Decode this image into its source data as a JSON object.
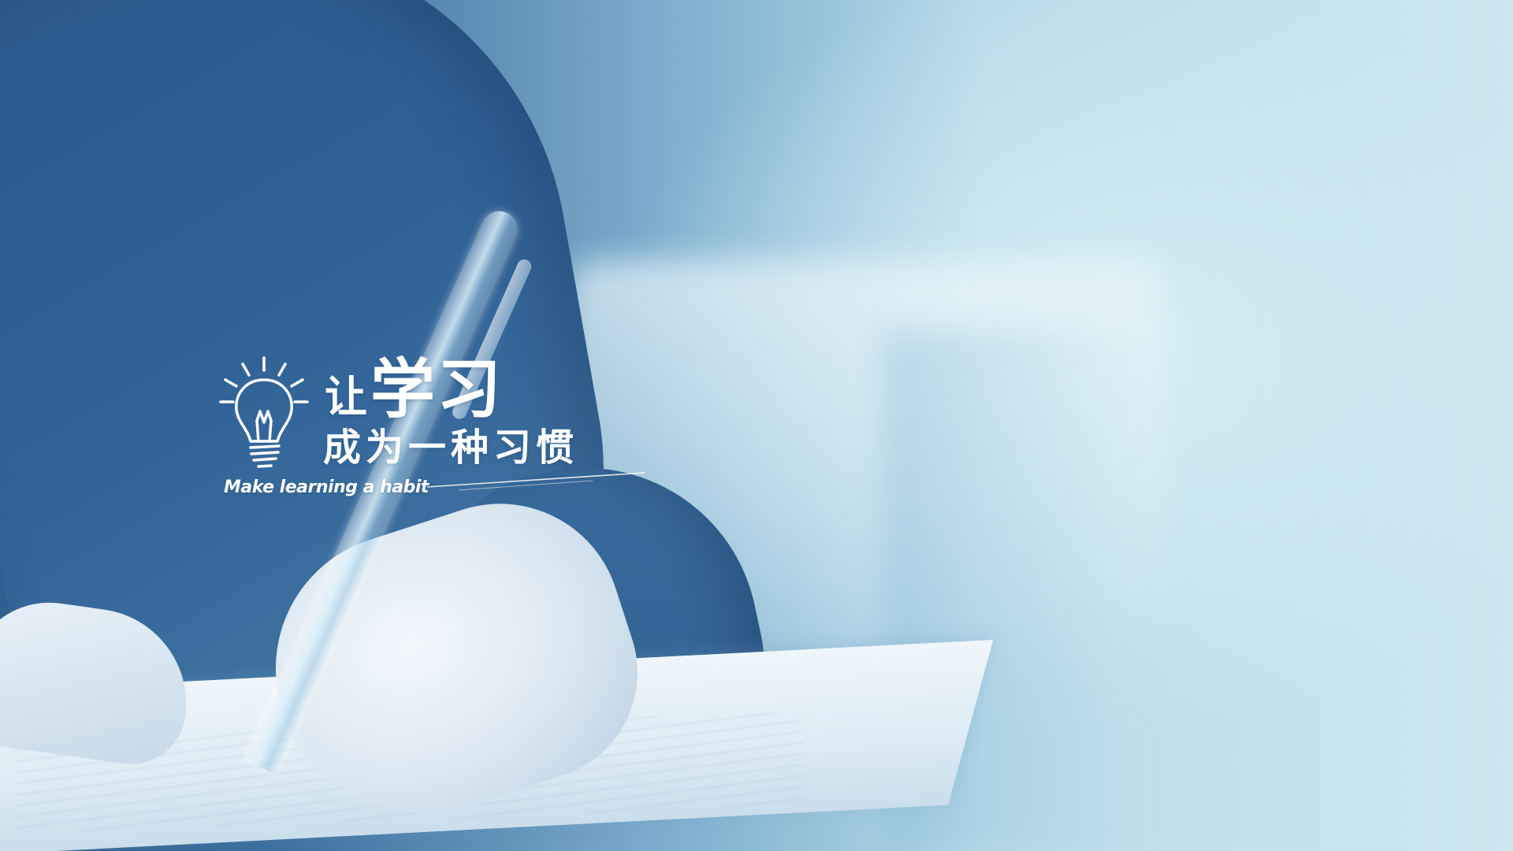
{
  "headline": {
    "line1_prefix": "让",
    "line1_main": "学习",
    "line2": "成为一种习惯"
  },
  "subtitle": "Make learning a habit",
  "colors": {
    "text": "#ffffff",
    "sleeve": "#2f6196",
    "background": "#bcdde9"
  },
  "icons": {
    "lightbulb": "lightbulb-icon"
  }
}
